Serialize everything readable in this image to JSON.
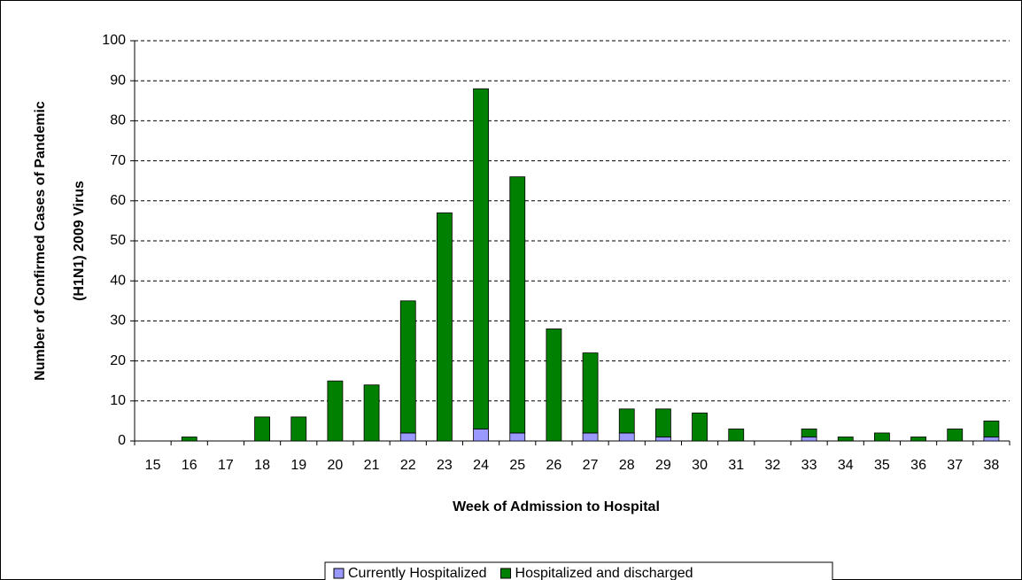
{
  "chart_data": {
    "type": "stacked_bar",
    "x_label": "Week of Admission to Hospital",
    "y_label": [
      "Number of Confirmed Cases of Pandemic",
      "(H1N1) 2009 Virus"
    ],
    "categories": [
      "15",
      "16",
      "17",
      "18",
      "19",
      "20",
      "21",
      "22",
      "23",
      "24",
      "25",
      "26",
      "27",
      "28",
      "29",
      "30",
      "31",
      "32",
      "33",
      "34",
      "35",
      "36",
      "37",
      "38"
    ],
    "series": [
      {
        "name": "Currently Hospitalized",
        "color": "#9999ff",
        "values": [
          0,
          0,
          0,
          0,
          0,
          0,
          0,
          2,
          0,
          3,
          2,
          0,
          2,
          2,
          1,
          0,
          0,
          0,
          1,
          0,
          0,
          0,
          0,
          1
        ]
      },
      {
        "name": "Hospitalized and discharged",
        "color": "#008000",
        "values": [
          0,
          1,
          0,
          6,
          6,
          15,
          14,
          33,
          57,
          85,
          64,
          28,
          20,
          6,
          7,
          7,
          3,
          0,
          2,
          1,
          2,
          1,
          3,
          4
        ]
      }
    ],
    "ylim": [
      0,
      100
    ],
    "yticks": [
      0,
      10,
      20,
      30,
      40,
      50,
      60,
      70,
      80,
      90,
      100
    ],
    "grid": true,
    "legend": "bottom"
  }
}
